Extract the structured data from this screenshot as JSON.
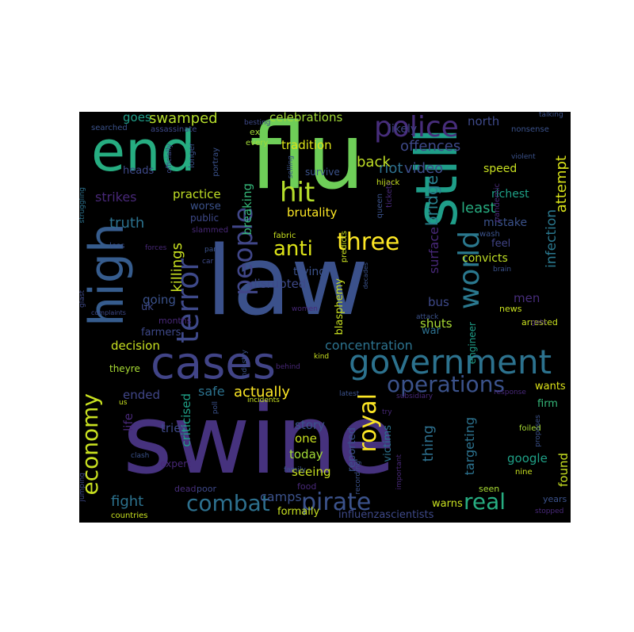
{
  "words": [
    {
      "text": "swine",
      "color": "#46327e"
    },
    {
      "text": "law",
      "color": "#3b518b"
    },
    {
      "text": "flu",
      "color": "#6ece58"
    },
    {
      "text": "end",
      "color": "#26ad81"
    },
    {
      "text": "still",
      "color": "#1f9e89"
    },
    {
      "text": "high",
      "color": "#365c8d"
    },
    {
      "text": "cases",
      "color": "#414487"
    },
    {
      "text": "government",
      "color": "#2c728e"
    },
    {
      "text": "police",
      "color": "#472d7b"
    },
    {
      "text": "terror",
      "color": "#3e4989"
    },
    {
      "text": "people",
      "color": "#404688"
    },
    {
      "text": "hit",
      "color": "#b5de2b"
    },
    {
      "text": "three",
      "color": "#fde725"
    },
    {
      "text": "anti",
      "color": "#dde318"
    },
    {
      "text": "world",
      "color": "#2a788e"
    },
    {
      "text": "royal",
      "color": "#fde725"
    },
    {
      "text": "pirate",
      "color": "#3b528b"
    },
    {
      "text": "combat",
      "color": "#2d708e"
    },
    {
      "text": "economy",
      "color": "#c8e020"
    },
    {
      "text": "real",
      "color": "#27ad81"
    },
    {
      "text": "operations",
      "color": "#3b528b"
    },
    {
      "text": "swamped",
      "color": "#b5de2b"
    },
    {
      "text": "offences",
      "color": "#3e4989"
    },
    {
      "text": "video",
      "color": "#3d4d8a"
    },
    {
      "text": "bridge",
      "color": "#27808e"
    },
    {
      "text": "riot",
      "color": "#2d708e"
    },
    {
      "text": "back",
      "color": "#c0df25"
    },
    {
      "text": "tradition",
      "color": "#dde318"
    },
    {
      "text": "celebrations",
      "color": "#a2da37"
    },
    {
      "text": "goes",
      "color": "#1f9e89"
    },
    {
      "text": "north",
      "color": "#3e4989"
    },
    {
      "text": "likely",
      "color": "#414487"
    },
    {
      "text": "speed",
      "color": "#c8e020"
    },
    {
      "text": "attempt",
      "color": "#d8e219"
    },
    {
      "text": "strikes",
      "color": "#482878"
    },
    {
      "text": "practice",
      "color": "#c0df25"
    },
    {
      "text": "truth",
      "color": "#2c728e"
    },
    {
      "text": "worse",
      "color": "#3b528b"
    },
    {
      "text": "public",
      "color": "#3e4989"
    },
    {
      "text": "killings",
      "color": "#c8e020"
    },
    {
      "text": "breaking",
      "color": "#35b779"
    },
    {
      "text": "brutality",
      "color": "#fde725"
    },
    {
      "text": "trying",
      "color": "#3b528b"
    },
    {
      "text": "least",
      "color": "#27ad81"
    },
    {
      "text": "richest",
      "color": "#1fa187"
    },
    {
      "text": "mistake",
      "color": "#3b528b"
    },
    {
      "text": "infection",
      "color": "#2a788e"
    },
    {
      "text": "convicts",
      "color": "#c0df25"
    },
    {
      "text": "feel",
      "color": "#414487"
    },
    {
      "text": "surface",
      "color": "#482878"
    },
    {
      "text": "disrupted",
      "color": "#3e4989"
    },
    {
      "text": "going",
      "color": "#3b528b"
    },
    {
      "text": "men",
      "color": "#472d7b"
    },
    {
      "text": "bus",
      "color": "#3e4989"
    },
    {
      "text": "concentration",
      "color": "#2c728e"
    },
    {
      "text": "blasphemy",
      "color": "#c8e020"
    },
    {
      "text": "shuts",
      "color": "#a8db34"
    },
    {
      "text": "war",
      "color": "#2d708e"
    },
    {
      "text": "decision",
      "color": "#c8e020"
    },
    {
      "text": "farmers",
      "color": "#3e4989"
    },
    {
      "text": "months",
      "color": "#482878"
    },
    {
      "text": "uk",
      "color": "#3e4989"
    },
    {
      "text": "ended",
      "color": "#404688"
    },
    {
      "text": "safe",
      "color": "#2c728e"
    },
    {
      "text": "actually",
      "color": "#fde725"
    },
    {
      "text": "wants",
      "color": "#dde318"
    },
    {
      "text": "firm",
      "color": "#35b779"
    },
    {
      "text": "life",
      "color": "#482878"
    },
    {
      "text": "tries",
      "color": "#3e4989"
    },
    {
      "text": "criticised",
      "color": "#1fa187"
    },
    {
      "text": "story",
      "color": "#3b528b"
    },
    {
      "text": "one",
      "color": "#c8e020"
    },
    {
      "text": "today",
      "color": "#a2da37"
    },
    {
      "text": "seeing",
      "color": "#c8e020"
    },
    {
      "text": "thing",
      "color": "#2d708e"
    },
    {
      "text": "targeting",
      "color": "#2c728e"
    },
    {
      "text": "google",
      "color": "#1fa187"
    },
    {
      "text": "found",
      "color": "#c8e020"
    },
    {
      "text": "fight",
      "color": "#2c728e"
    },
    {
      "text": "camps",
      "color": "#3b528b"
    },
    {
      "text": "warns",
      "color": "#c8e020"
    },
    {
      "text": "formally",
      "color": "#c8e020"
    },
    {
      "text": "influenzascientists",
      "color": "#3e4989"
    },
    {
      "text": "reported",
      "color": "#3b528b"
    },
    {
      "text": "victims",
      "color": "#2c728e"
    },
    {
      "text": "engineer",
      "color": "#1f9e89"
    },
    {
      "text": "theyre",
      "color": "#a8db34"
    },
    {
      "text": "expert",
      "color": "#482878"
    },
    {
      "text": "dead",
      "color": "#472d7b"
    },
    {
      "text": "poor",
      "color": "#3e4989"
    },
    {
      "text": "food",
      "color": "#482878"
    },
    {
      "text": "seen",
      "color": "#a8db34"
    },
    {
      "text": "years",
      "color": "#3b528b"
    },
    {
      "text": "countries",
      "color": "#c8e020"
    },
    {
      "text": "heads",
      "color": "#3e4989"
    },
    {
      "text": "longer",
      "color": "#3b528b"
    },
    {
      "text": "portray",
      "color": "#3b528b"
    },
    {
      "text": "survive",
      "color": "#3b528b"
    },
    {
      "text": "nine",
      "color": "#c8e020"
    },
    {
      "text": "foiled",
      "color": "#a8db34"
    },
    {
      "text": "news",
      "color": "#c8e020"
    },
    {
      "text": "arrested",
      "color": "#c8e020"
    },
    {
      "text": "every",
      "color": "#a2da37"
    },
    {
      "text": "ex",
      "color": "#a2da37"
    },
    {
      "text": "searched",
      "color": "#3b528b"
    },
    {
      "text": "assassinate",
      "color": "#3e4989"
    },
    {
      "text": "besting",
      "color": "#3e4989"
    },
    {
      "text": "nonsense",
      "color": "#3b528b"
    },
    {
      "text": "talking",
      "color": "#3b528b"
    },
    {
      "text": "struggling",
      "color": "#2c728e"
    },
    {
      "text": "officially",
      "color": "#3e4989"
    },
    {
      "text": "selling",
      "color": "#3b528b"
    },
    {
      "text": "hijack",
      "color": "#c8e020"
    },
    {
      "text": "queen",
      "color": "#3b528b"
    },
    {
      "text": "tickets",
      "color": "#482878"
    },
    {
      "text": "pandemic",
      "color": "#482878"
    },
    {
      "text": "violent",
      "color": "#3b528b"
    },
    {
      "text": "slammed",
      "color": "#482878"
    },
    {
      "text": "fabric",
      "color": "#c8e020"
    },
    {
      "text": "wash",
      "color": "#3b528b"
    },
    {
      "text": "party",
      "color": "#3b528b"
    },
    {
      "text": "forces",
      "color": "#482878"
    },
    {
      "text": "car",
      "color": "#3e4989"
    },
    {
      "text": "less",
      "color": "#3b528b"
    },
    {
      "text": "predicts",
      "color": "#c8e020"
    },
    {
      "text": "brain",
      "color": "#3b528b"
    },
    {
      "text": "glast",
      "color": "#3e4989"
    },
    {
      "text": "decades",
      "color": "#3b528b"
    },
    {
      "text": "complaints",
      "color": "#3e4989"
    },
    {
      "text": "women",
      "color": "#482878"
    },
    {
      "text": "attack",
      "color": "#3b528b"
    },
    {
      "text": "gets",
      "color": "#482878"
    },
    {
      "text": "industry",
      "color": "#3b528b"
    },
    {
      "text": "behind",
      "color": "#482878"
    },
    {
      "text": "kind",
      "color": "#c8e020"
    },
    {
      "text": "poll",
      "color": "#3b528b"
    },
    {
      "text": "incidents",
      "color": "#c8e020"
    },
    {
      "text": "latest",
      "color": "#3b528b"
    },
    {
      "text": "subsidiary",
      "color": "#482878"
    },
    {
      "text": "response",
      "color": "#482878"
    },
    {
      "text": "us",
      "color": "#c8e020"
    },
    {
      "text": "try",
      "color": "#482878"
    },
    {
      "text": "proposes",
      "color": "#3b528b"
    },
    {
      "text": "clash",
      "color": "#3b528b"
    },
    {
      "text": "family",
      "color": "#3b528b"
    },
    {
      "text": "recording",
      "color": "#3b528b"
    },
    {
      "text": "important",
      "color": "#482878"
    },
    {
      "text": "jumping",
      "color": "#3e4989"
    },
    {
      "text": "stopped",
      "color": "#482878"
    }
  ]
}
